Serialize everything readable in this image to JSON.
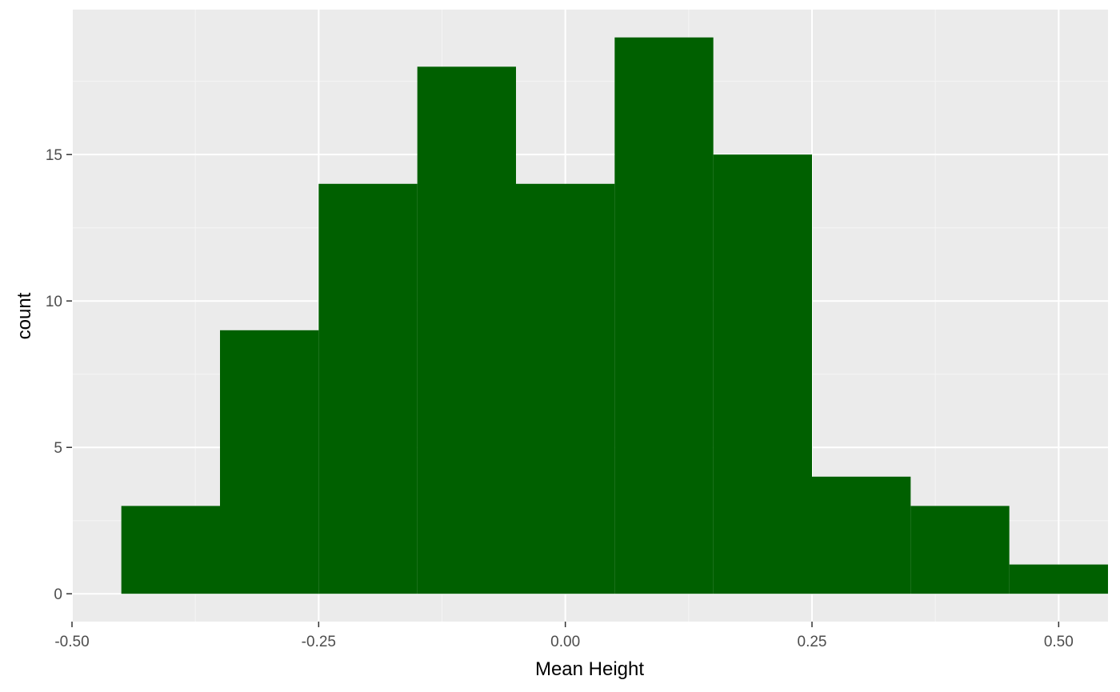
{
  "chart_data": {
    "type": "bar",
    "xlabel": "Mean Height",
    "ylabel": "count",
    "bins": [
      {
        "x0": -0.45,
        "x1": -0.35,
        "count": 3
      },
      {
        "x0": -0.35,
        "x1": -0.25,
        "count": 9
      },
      {
        "x0": -0.25,
        "x1": -0.15,
        "count": 14
      },
      {
        "x0": -0.15,
        "x1": -0.05,
        "count": 18
      },
      {
        "x0": -0.05,
        "x1": 0.05,
        "count": 14
      },
      {
        "x0": 0.05,
        "x1": 0.15,
        "count": 19
      },
      {
        "x0": 0.15,
        "x1": 0.25,
        "count": 15
      },
      {
        "x0": 0.25,
        "x1": 0.35,
        "count": 4
      },
      {
        "x0": 0.35,
        "x1": 0.45,
        "count": 3
      },
      {
        "x0": 0.45,
        "x1": 0.55,
        "count": 1
      }
    ],
    "xlim": [
      -0.5,
      0.55
    ],
    "ylim": [
      -0.95,
      19.95
    ],
    "x_ticks": [
      -0.5,
      -0.25,
      0.0,
      0.25,
      0.5
    ],
    "x_tick_labels": [
      "-0.50",
      "-0.25",
      "0.00",
      "0.25",
      "0.50"
    ],
    "y_ticks": [
      0,
      5,
      10,
      15
    ],
    "y_tick_labels": [
      "0",
      "5",
      "10",
      "15"
    ],
    "grid": true,
    "legend": "none",
    "colors": {
      "bar_fill": "#006000",
      "panel_background": "#ebebeb",
      "grid_major": "#ffffff",
      "grid_minor": "#f5f5f5",
      "tick_mark": "#333333"
    }
  }
}
